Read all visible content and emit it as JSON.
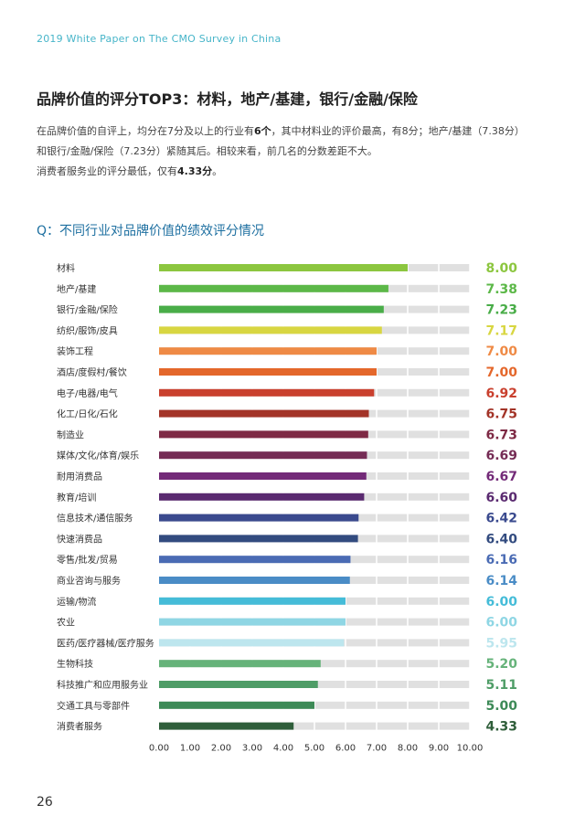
{
  "header": "2019 White Paper on The CMO Survey in China",
  "title": "品牌价值的评分TOP3：材料，地产/基建，银行/金融/保险",
  "paragraph": {
    "line1_a": "在品牌价值的自评上，均分在7分及以上的行业有",
    "line1_b": "6个",
    "line1_c": "，其中材料业的评价最高，有8分；地产/基建（7.38分）",
    "line2": "和银行/金融/保险（7.23分）紧随其后。相较来看，前几名的分数差距不大。",
    "line3_a": "消费者服务业的评分最低，仅有",
    "line3_b": "4.33分",
    "line3_c": "。"
  },
  "question_title": "Q：不同行业对品牌价值的绩效评分情况",
  "page_number": "26",
  "chart_data": {
    "type": "bar",
    "orientation": "horizontal",
    "categories": [
      "材料",
      "地产/基建",
      "银行/金融/保险",
      "纺织/服饰/皮具",
      "装饰工程",
      "酒店/度假村/餐饮",
      "电子/电器/电气",
      "化工/日化/石化",
      "制造业",
      "媒体/文化/体育/娱乐",
      "耐用消费品",
      "教育/培训",
      "信息技术/通信服务",
      "快速消费品",
      "零售/批发/贸易",
      "商业咨询与服务",
      "运输/物流",
      "农业",
      "医药/医疗器械/医疗服务",
      "生物科技",
      "科技推广和应用服务业",
      "交通工具与零部件",
      "消费者服务"
    ],
    "values": [
      8.0,
      7.38,
      7.23,
      7.17,
      7.0,
      7.0,
      6.92,
      6.75,
      6.73,
      6.69,
      6.67,
      6.6,
      6.42,
      6.4,
      6.16,
      6.14,
      6.0,
      6.0,
      5.95,
      5.2,
      5.11,
      5.0,
      4.33
    ],
    "value_labels": [
      "8.00",
      "7.38",
      "7.23",
      "7.17",
      "7.00",
      "7.00",
      "6.92",
      "6.75",
      "6.73",
      "6.69",
      "6.67",
      "6.60",
      "6.42",
      "6.40",
      "6.16",
      "6.14",
      "6.00",
      "6.00",
      "5.95",
      "5.20",
      "5.11",
      "5.00",
      "4.33"
    ],
    "colors": [
      "#8cc63f",
      "#5cb848",
      "#49ad48",
      "#d8d641",
      "#ef8a45",
      "#e4672b",
      "#c9402e",
      "#a33428",
      "#7e2a45",
      "#752c55",
      "#732a78",
      "#5a2a70",
      "#3a4a8e",
      "#324b7f",
      "#4a6bb4",
      "#4a8cc6",
      "#45bcd8",
      "#8fd6e4",
      "#bde6ee",
      "#66b37a",
      "#4f9d67",
      "#3d8a57",
      "#2f5e3a"
    ],
    "xlim": [
      0,
      10
    ],
    "xticks": [
      "0.00",
      "1.00",
      "2.00",
      "3.00",
      "4.00",
      "5.00",
      "6.00",
      "7.00",
      "8.00",
      "9.00",
      "10.00"
    ],
    "background_bar": true,
    "grid": true
  }
}
